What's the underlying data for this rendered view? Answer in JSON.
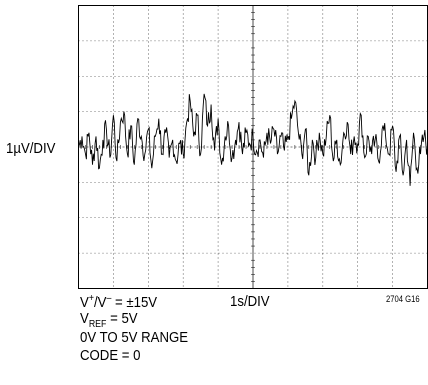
{
  "chart_data": {
    "type": "line",
    "title": "",
    "xlabel": "",
    "ylabel": "",
    "grid": true,
    "x_divisions": 10,
    "y_divisions": 8,
    "xlim": [
      0,
      10
    ],
    "ylim": [
      -4,
      4
    ],
    "x_scale_label": "1s/DIV",
    "y_scale_label": "1µV/DIV",
    "series": [
      {
        "x": [
          0.0,
          0.1,
          0.2,
          0.3,
          0.4,
          0.5,
          0.6,
          0.7,
          0.8,
          0.9,
          1.0,
          1.1,
          1.2,
          1.3,
          1.4,
          1.5,
          1.6,
          1.7,
          1.8,
          1.9,
          2.0,
          2.1,
          2.2,
          2.3,
          2.4,
          2.5,
          2.6,
          2.7,
          2.8,
          2.9,
          3.0,
          3.1,
          3.2,
          3.3,
          3.4,
          3.5,
          3.6,
          3.7,
          3.8,
          3.9,
          4.0,
          4.1,
          4.2,
          4.3,
          4.4,
          4.5,
          4.6,
          4.7,
          4.8,
          4.9,
          5.0,
          5.1,
          5.2,
          5.3,
          5.4,
          5.5,
          5.6,
          5.7,
          5.8,
          5.9,
          6.0,
          6.1,
          6.2,
          6.3,
          6.4,
          6.5,
          6.6,
          6.7,
          6.8,
          6.9,
          7.0,
          7.1,
          7.2,
          7.3,
          7.4,
          7.5,
          7.6,
          7.7,
          7.8,
          7.9,
          8.0,
          8.1,
          8.2,
          8.3,
          8.4,
          8.5,
          8.6,
          8.7,
          8.8,
          8.9,
          9.0,
          9.1,
          9.2,
          9.3,
          9.4,
          9.5,
          9.6,
          9.7,
          9.8,
          9.9,
          10.0
        ],
        "values": [
          0.0,
          0.3,
          -0.2,
          0.4,
          -0.5,
          0.3,
          -0.6,
          0.2,
          0.5,
          -0.3,
          0.9,
          -0.4,
          0.7,
          1.0,
          -0.2,
          0.6,
          -0.5,
          0.8,
          0.3,
          -0.2,
          0.5,
          -0.6,
          0.3,
          0.8,
          -0.2,
          0.4,
          -0.3,
          0.2,
          -0.4,
          0.1,
          -0.2,
          0.7,
          1.3,
          0.3,
          0.9,
          -0.2,
          1.5,
          0.6,
          1.2,
          -0.1,
          0.8,
          -0.5,
          0.3,
          0.6,
          -0.3,
          0.2,
          0.7,
          -0.2,
          0.4,
          0.1,
          0.3,
          -0.1,
          0.2,
          -0.3,
          0.4,
          0.1,
          0.5,
          -0.2,
          0.3,
          -0.1,
          0.2,
          0.8,
          1.3,
          0.4,
          -0.2,
          0.5,
          -0.8,
          0.2,
          -0.3,
          0.4,
          -0.2,
          0.3,
          0.9,
          -0.4,
          0.2,
          -0.5,
          0.4,
          0.7,
          -0.2,
          0.3,
          0.1,
          0.9,
          -0.3,
          0.3,
          -0.2,
          0.2,
          -0.4,
          0.5,
          0.3,
          -0.2,
          0.6,
          -0.7,
          0.3,
          -0.8,
          0.2,
          -1.1,
          0.4,
          -0.6,
          -0.2,
          0.3,
          0.0
        ]
      }
    ]
  },
  "labels": {
    "y_scale": "1µV/DIV",
    "x_scale": "1s/DIV",
    "supply_v": "V",
    "supply_plus": "+",
    "supply_slash": "/V",
    "supply_minus": "–",
    "supply_value": " = ±15V",
    "vref_v": "V",
    "vref_sub": "REF",
    "vref_value": " = 5V",
    "range": "0V TO 5V RANGE",
    "code": "CODE = 0",
    "figure_id": "2704 G16"
  }
}
